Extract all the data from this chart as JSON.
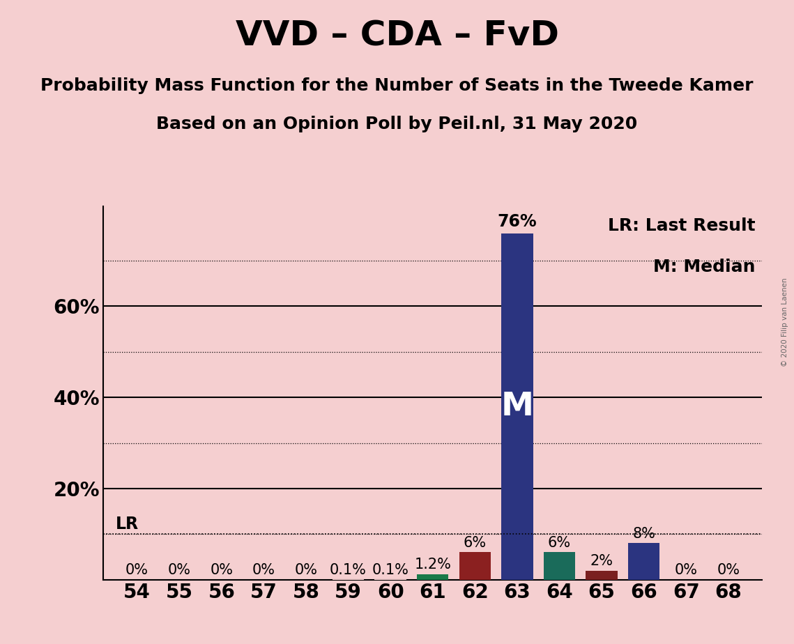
{
  "title": "VVD – CDA – FvD",
  "subtitle1": "Probability Mass Function for the Number of Seats in the Tweede Kamer",
  "subtitle2": "Based on an Opinion Poll by Peil.nl, 31 May 2020",
  "copyright": "© 2020 Filip van Laenen",
  "seats": [
    54,
    55,
    56,
    57,
    58,
    59,
    60,
    61,
    62,
    63,
    64,
    65,
    66,
    67,
    68
  ],
  "values": [
    0.0,
    0.0,
    0.0,
    0.0,
    0.0,
    0.1,
    0.1,
    1.2,
    6.0,
    76.0,
    6.0,
    2.0,
    8.0,
    0.0,
    0.0
  ],
  "labels": [
    "0%",
    "0%",
    "0%",
    "0%",
    "0%",
    "0.1%",
    "0.1%",
    "1.2%",
    "6%",
    "76%",
    "6%",
    "2%",
    "8%",
    "0%",
    "0%"
  ],
  "bar_colors": [
    "#f5cfd0",
    "#f5cfd0",
    "#f5cfd0",
    "#f5cfd0",
    "#f5cfd0",
    "#f5cfd0",
    "#f5cfd0",
    "#1a7a4a",
    "#8b2020",
    "#2b3480",
    "#1a6b5a",
    "#7a2020",
    "#2b3480",
    "#f5cfd0",
    "#f5cfd0"
  ],
  "median_seat": 63,
  "median_label": "M",
  "lr_value": 10.0,
  "lr_label": "LR",
  "legend_text1": "LR: Last Result",
  "legend_text2": "M: Median",
  "background_color": "#f5cfd0",
  "ylim": [
    0,
    82
  ],
  "solid_yticks": [
    20,
    40,
    60
  ],
  "solid_ytick_labels": [
    "20%",
    "40%",
    "60%"
  ],
  "grid_yticks": [
    10,
    30,
    50,
    70
  ],
  "title_fontsize": 36,
  "subtitle_fontsize": 18,
  "label_fontsize": 14,
  "tick_fontsize": 20,
  "legend_fontsize": 18,
  "bar_label_fontsize": 15
}
